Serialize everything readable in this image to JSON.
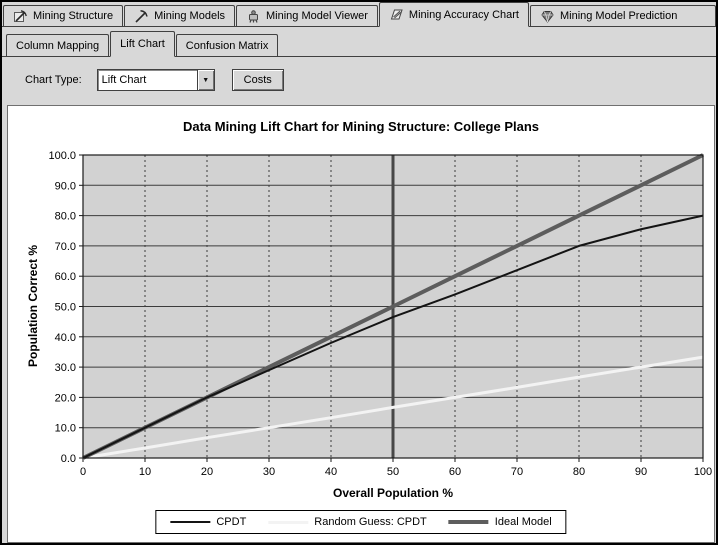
{
  "tabs": [
    {
      "label": "Mining Structure",
      "icon": "mining-structure-icon",
      "selected": false
    },
    {
      "label": "Mining Models",
      "icon": "mining-models-icon",
      "selected": false
    },
    {
      "label": "Mining Model Viewer",
      "icon": "mining-model-viewer-icon",
      "selected": false
    },
    {
      "label": "Mining Accuracy Chart",
      "icon": "mining-accuracy-chart-icon",
      "selected": true
    },
    {
      "label": "Mining Model Prediction",
      "icon": "mining-model-prediction-icon",
      "selected": false
    }
  ],
  "subtabs": [
    {
      "label": "Column Mapping",
      "selected": false
    },
    {
      "label": "Lift Chart",
      "selected": true
    },
    {
      "label": "Confusion Matrix",
      "selected": false
    }
  ],
  "controls": {
    "chart_type_label": "Chart Type:",
    "chart_type_value": "Lift Chart",
    "dropdown_icon": "chevron-down-icon",
    "dropdown_glyph": "▼",
    "costs_label": "Costs"
  },
  "chart_data": {
    "type": "line",
    "title": "Data Mining Lift Chart for Mining Structure: College Plans",
    "xlabel": "Overall Population %",
    "ylabel": "Population Correct %",
    "xlim": [
      0,
      100
    ],
    "ylim": [
      0,
      100
    ],
    "x_tick_labels": [
      "0",
      "10",
      "20",
      "30",
      "40",
      "50",
      "60",
      "70",
      "80",
      "90",
      "100"
    ],
    "y_tick_labels": [
      "0.0",
      "10.0",
      "20.0",
      "30.0",
      "40.0",
      "50.0",
      "60.0",
      "70.0",
      "80.0",
      "90.0",
      "100.0"
    ],
    "grid": true,
    "legend_position": "bottom",
    "vertical_marker_x": 50,
    "x": [
      0,
      10,
      20,
      30,
      40,
      50,
      60,
      70,
      80,
      90,
      100
    ],
    "series": [
      {
        "name": "CPDT",
        "color": "#141414",
        "stroke_width": 2,
        "values": [
          0,
          10,
          20,
          29,
          38,
          46.5,
          54,
          62,
          70,
          75.5,
          80
        ]
      },
      {
        "name": "Random Guess: CPDT",
        "color": "#f3f3f3",
        "stroke_width": 3,
        "values": [
          0,
          3.3,
          6.7,
          10,
          13.3,
          16.7,
          20,
          23.3,
          26.7,
          30,
          33.3
        ]
      },
      {
        "name": "Ideal Model",
        "color": "#5d5d5d",
        "stroke_width": 4,
        "values": [
          0,
          10,
          20,
          30,
          40,
          50,
          60,
          70,
          80,
          90,
          100
        ]
      }
    ],
    "colors": {
      "plot_bg": "#d2d2d2",
      "grid": "#3c3c3c",
      "axis": "#1a1a1a",
      "marker": "#474747"
    }
  }
}
